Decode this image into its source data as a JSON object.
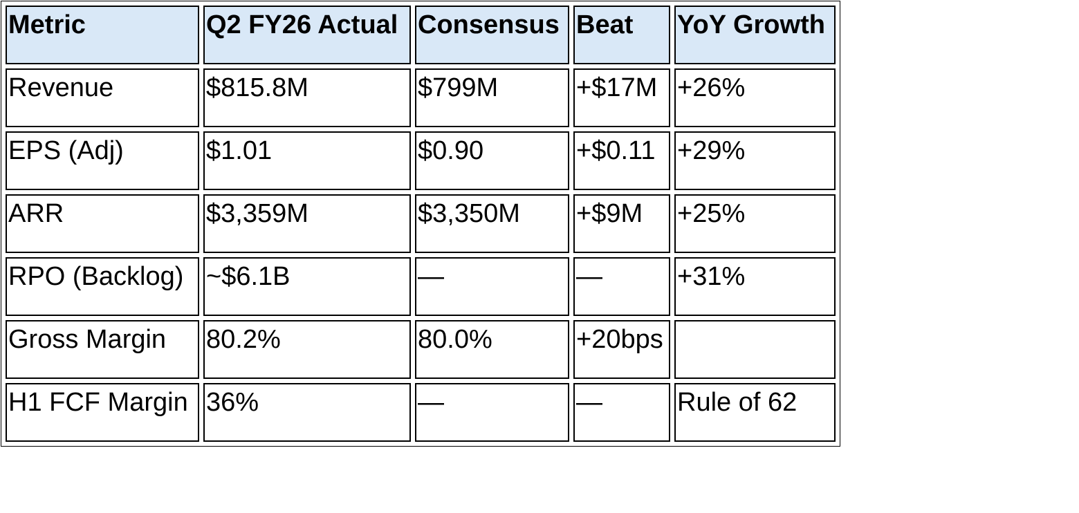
{
  "table": {
    "headers": [
      "Metric",
      "Q2 FY26 Actual",
      "Consensus",
      "Beat",
      "YoY Growth"
    ],
    "rows": [
      [
        "Revenue",
        "$815.8M",
        "$799M",
        "+$17M",
        "+26%"
      ],
      [
        "EPS (Adj)",
        "$1.01",
        "$0.90",
        "+$0.11",
        "+29%"
      ],
      [
        "ARR",
        "$3,359M",
        "$3,350M",
        "+$9M",
        "+25%"
      ],
      [
        "RPO (Backlog)",
        "~$6.1B",
        "—",
        "—",
        "+31%"
      ],
      [
        "Gross Margin",
        "80.2%",
        "80.0%",
        "+20bps",
        ""
      ],
      [
        "H1 FCF Margin",
        "36%",
        "—",
        "—",
        "Rule of 62"
      ]
    ]
  }
}
